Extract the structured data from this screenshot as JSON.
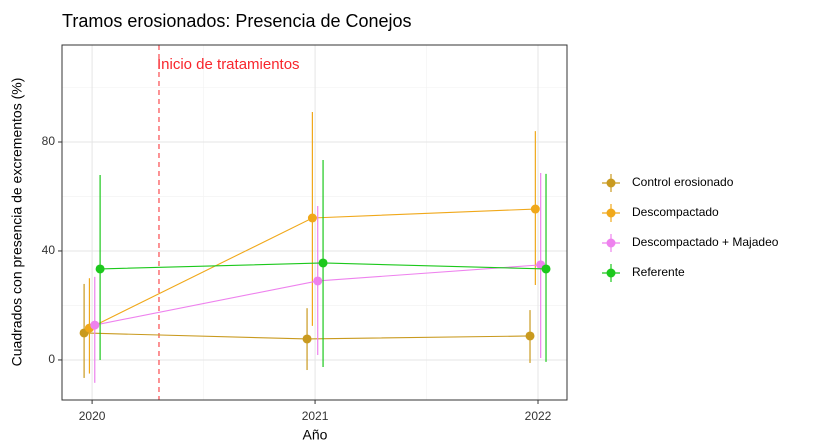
{
  "chart_data": {
    "type": "line",
    "title": "Tramos erosionados: Presencia de Conejos",
    "x_label": "Año",
    "y_label": "Cuadrados con presencia de excrementos (%)",
    "x": [
      2020,
      2021,
      2022
    ],
    "xlim": [
      2019.865,
      2022.13
    ],
    "xticks": [
      2020,
      2021,
      2022
    ],
    "xminor": [
      2020.5,
      2021.5
    ],
    "ylim": [
      -14.7,
      115.6
    ],
    "yticks": [
      0,
      40,
      80
    ],
    "yminor": [
      20,
      60,
      100
    ],
    "grid": true,
    "legend": "right",
    "annotation": {
      "text": "Inicio de tratamientos",
      "x": 2020.3,
      "color": "#f8262c"
    },
    "series": [
      {
        "name": "Control erosionado",
        "color": "#c99a1f",
        "values": [
          9.9,
          7.7,
          8.8
        ],
        "upper": [
          27.9,
          19,
          18.3
        ],
        "lower": [
          -6.6,
          -3.7,
          -1.1
        ]
      },
      {
        "name": "Descompactado",
        "color": "#f0a81a",
        "values": [
          11.7,
          52.1,
          55.4
        ],
        "upper": [
          30,
          91,
          84
        ],
        "lower": [
          -5,
          12.5,
          27.5
        ]
      },
      {
        "name": "Descompactado + Majadeo",
        "color": "#ee82ee",
        "values": [
          12.8,
          29,
          34.9
        ],
        "upper": [
          30.5,
          56.5,
          68.6
        ],
        "lower": [
          -8.4,
          1.8,
          0.7
        ]
      },
      {
        "name": "Referente",
        "color": "#1cc81c",
        "values": [
          33.4,
          35.6,
          33.4
        ],
        "upper": [
          67.9,
          73.4,
          68.3
        ],
        "lower": [
          0,
          -2.6,
          -0.7
        ]
      }
    ]
  }
}
